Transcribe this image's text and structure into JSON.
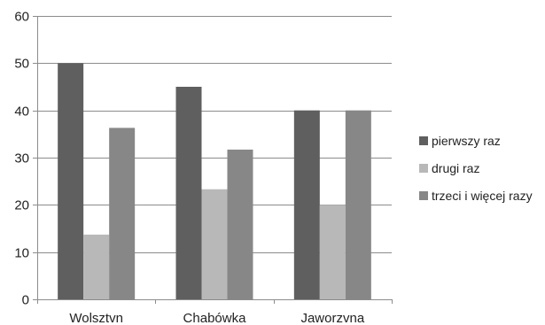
{
  "chart_data": {
    "type": "bar",
    "title": "",
    "xlabel": "",
    "ylabel": "",
    "categories": [
      "Wolsztvn",
      "Chabówka",
      "Jaworzvna"
    ],
    "series": [
      {
        "name": "pierwszy raz",
        "values": [
          50,
          45,
          40
        ],
        "color": "#5f5f5f"
      },
      {
        "name": "drugi raz",
        "values": [
          13.7,
          23.3,
          20
        ],
        "color": "#b8b8b8"
      },
      {
        "name": "trzeci i więcej razy",
        "values": [
          36.3,
          31.7,
          40
        ],
        "color": "#878787"
      }
    ],
    "ylim": [
      0,
      60
    ],
    "yticks": [
      "0",
      "10",
      "20",
      "30",
      "40",
      "50",
      "60"
    ],
    "grid": true,
    "legend_position": "right"
  }
}
